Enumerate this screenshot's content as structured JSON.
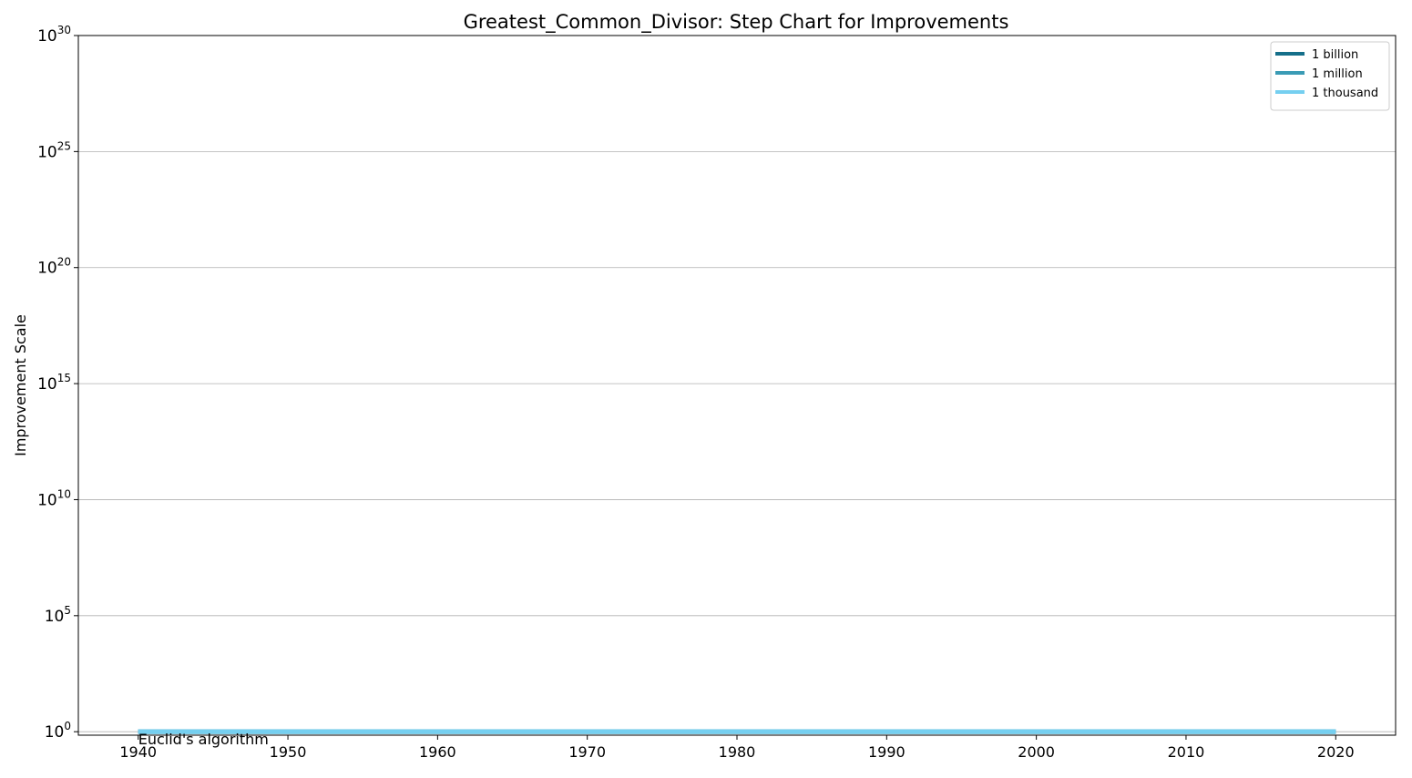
{
  "chart_data": {
    "type": "line",
    "step": true,
    "title": "Greatest_Common_Divisor: Step Chart for Improvements",
    "xlabel": "",
    "ylabel": "Improvement Scale",
    "xlim": [
      1936,
      2024
    ],
    "ylim_exponent": [
      -0.15,
      30
    ],
    "yscale": "log",
    "x_ticks": [
      1940,
      1950,
      1960,
      1970,
      1980,
      1990,
      2000,
      2010,
      2020
    ],
    "x_tick_labels": [
      "1940",
      "1950",
      "1960",
      "1970",
      "1980",
      "1990",
      "2000",
      "2010",
      "2020"
    ],
    "y_tick_exponents": [
      0,
      5,
      10,
      15,
      20,
      25,
      30
    ],
    "y_tick_base": "10",
    "y_tick_exps": [
      "0",
      "5",
      "10",
      "15",
      "20",
      "25",
      "30"
    ],
    "grid": "y",
    "legend_position": "top-right",
    "series": [
      {
        "name": "1 billion",
        "color": "#156f8a",
        "x": [
          1940,
          2020
        ],
        "y": [
          1,
          1
        ]
      },
      {
        "name": "1 million",
        "color": "#3a9bb5",
        "x": [
          1940,
          2020
        ],
        "y": [
          1,
          1
        ]
      },
      {
        "name": "1 thousand",
        "color": "#75cff0",
        "x": [
          1940,
          2020
        ],
        "y": [
          1,
          1
        ]
      }
    ],
    "annotations": [
      {
        "text": "Euclid's algorithm",
        "x": 1940,
        "y": 1
      }
    ]
  }
}
